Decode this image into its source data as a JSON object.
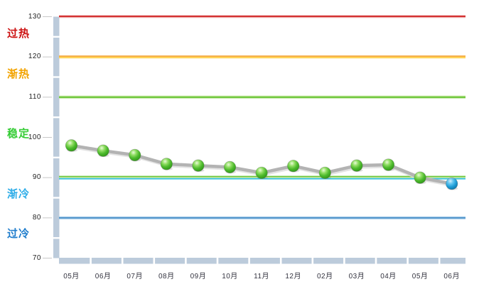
{
  "chart_data": {
    "type": "line",
    "title": "",
    "legend": "none",
    "grid": false,
    "categories": [
      "05月",
      "06月",
      "07月",
      "08月",
      "09月",
      "10月",
      "11月",
      "12月",
      "02月",
      "03月",
      "04月",
      "05月",
      "06月"
    ],
    "values": [
      98,
      96.7,
      95.6,
      93.4,
      93,
      92.6,
      91.2,
      92.9,
      91.2,
      93,
      93.2,
      90,
      88.5
    ],
    "ylim": [
      70,
      130
    ],
    "yticks": [
      130,
      120,
      110,
      100,
      90,
      80,
      70
    ],
    "zones": [
      {
        "label": "过热",
        "color": "#cc1111",
        "value": 126.2
      },
      {
        "label": "渐热",
        "color": "#f2a300",
        "value": 116.0
      },
      {
        "label": "稳定",
        "color": "#35cc35",
        "value": 101.3
      },
      {
        "label": "渐冷",
        "color": "#2fade8",
        "value": 86.2
      },
      {
        "label": "过冷",
        "color": "#1e7ccc",
        "value": 76.4
      }
    ],
    "zone_lines": [
      {
        "value": 130,
        "colors": [
          "#d43232",
          "#efb6b6"
        ],
        "heights": [
          2.5,
          1
        ]
      },
      {
        "value": 120,
        "colors": [
          "#f5a93f",
          "#ffd24e"
        ],
        "heights": [
          2,
          2
        ]
      },
      {
        "value": 110,
        "colors": [
          "#d8efb8",
          "#72c840",
          "#cdeab4"
        ],
        "heights": [
          1,
          2.5,
          1
        ]
      },
      {
        "value": 90,
        "colors": [
          "#6cc83e",
          "#eef2aa",
          "#38c2de"
        ],
        "heights": [
          2,
          1,
          2
        ]
      },
      {
        "value": 80,
        "colors": [
          "#a9cfec",
          "#4a8fc8",
          "#a9cfec"
        ],
        "heights": [
          1,
          2,
          1
        ]
      }
    ],
    "marker": {
      "color_default": "#44b436",
      "color_last": "#219fd8",
      "line_color": "#b3b3b3"
    },
    "axis_band_color": "#bccbdb",
    "tick_color": "#c8c8c8",
    "label_color": "#33333f"
  }
}
